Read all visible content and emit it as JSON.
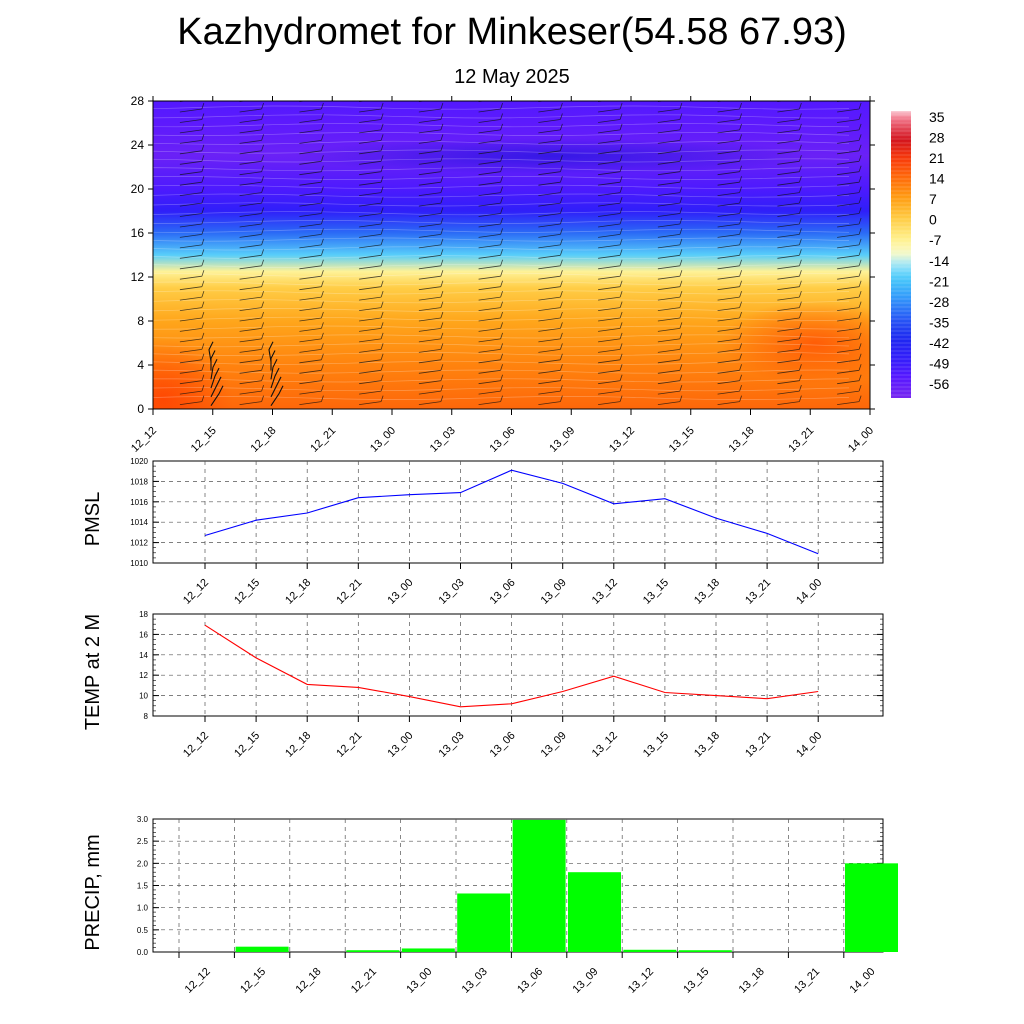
{
  "header": {
    "title": "Kazhydromet for Minkeser(54.58 67.93)",
    "subtitle": "12 May 2025"
  },
  "time_labels": [
    "12_12",
    "12_15",
    "12_18",
    "12_21",
    "13_00",
    "13_03",
    "13_06",
    "13_09",
    "13_12",
    "13_15",
    "13_18",
    "13_21",
    "14_00"
  ],
  "chart_data": [
    {
      "type": "heatmap",
      "title": "",
      "xlabel": "",
      "ylabel": "",
      "x": [
        "12_12",
        "12_15",
        "12_18",
        "12_21",
        "13_00",
        "13_03",
        "13_06",
        "13_09",
        "13_12",
        "13_15",
        "13_18",
        "13_21",
        "14_00"
      ],
      "y_ticks": [
        0,
        4,
        8,
        12,
        16,
        20,
        24,
        28
      ],
      "ylim": [
        0,
        28
      ],
      "colorbar_ticks": [
        35,
        28,
        21,
        14,
        7,
        0,
        -7,
        -14,
        -21,
        -28,
        -35,
        -42,
        -49,
        -56
      ],
      "colorbar_range": [
        -63,
        38
      ],
      "vertical_profile_typical": [
        {
          "level": 0,
          "value": 15
        },
        {
          "level": 4,
          "value": 11
        },
        {
          "level": 8,
          "value": 6
        },
        {
          "level": 11,
          "value": 0
        },
        {
          "level": 12.5,
          "value": -8
        },
        {
          "level": 14,
          "value": -20
        },
        {
          "level": 16,
          "value": -33
        },
        {
          "level": 18,
          "value": -48
        },
        {
          "level": 20,
          "value": -54
        },
        {
          "level": 23,
          "value": -60
        },
        {
          "level": 26,
          "value": -57
        },
        {
          "level": 28,
          "value": -55
        }
      ],
      "wind_barbs": true,
      "colors": {
        "warm": "#ff6a00",
        "mid": "#ffd040",
        "neutral": "#fff8c0",
        "cool": "#40c8f8",
        "cold": "#5a2aff",
        "coldest": "#1818e8"
      }
    },
    {
      "type": "line",
      "ylabel": "PMSL",
      "x": [
        "12_12",
        "12_15",
        "12_18",
        "12_21",
        "13_00",
        "13_03",
        "13_06",
        "13_09",
        "13_12",
        "13_15",
        "13_18",
        "13_21",
        "14_00"
      ],
      "values": [
        1012.7,
        1014.2,
        1014.9,
        1016.4,
        1016.7,
        1016.9,
        1019.1,
        1017.8,
        1015.8,
        1016.3,
        1014.4,
        1012.9,
        1010.9
      ],
      "ylim": [
        1010,
        1020
      ],
      "y_ticks": [
        1010,
        1012,
        1014,
        1016,
        1018,
        1020
      ],
      "grid": true,
      "color": "#0000ff"
    },
    {
      "type": "line",
      "ylabel": "TEMP at 2 M",
      "x": [
        "12_12",
        "12_15",
        "12_18",
        "12_21",
        "13_00",
        "13_03",
        "13_06",
        "13_09",
        "13_12",
        "13_15",
        "13_18",
        "13_21",
        "14_00"
      ],
      "values": [
        16.9,
        13.7,
        11.1,
        10.8,
        9.9,
        8.9,
        9.2,
        10.4,
        11.9,
        10.3,
        10.0,
        9.7,
        10.4
      ],
      "ylim": [
        8,
        18
      ],
      "y_ticks": [
        8,
        10,
        12,
        14,
        16,
        18
      ],
      "grid": true,
      "color": "#ff0000"
    },
    {
      "type": "bar",
      "ylabel": "PRECIP, mm",
      "categories": [
        "12_12",
        "12_15",
        "12_18",
        "12_21",
        "13_00",
        "13_03",
        "13_06",
        "13_09",
        "13_12",
        "13_15",
        "13_18",
        "13_21",
        "14_00"
      ],
      "values": [
        0.0,
        0.12,
        0.0,
        0.04,
        0.08,
        1.32,
        2.98,
        1.8,
        0.05,
        0.04,
        0.0,
        0.0,
        2.0
      ],
      "ylim": [
        0,
        3.0
      ],
      "y_ticks": [
        "0.0",
        "0.5",
        "1.0",
        "1.5",
        "2.0",
        "2.5",
        "3.0"
      ],
      "grid": true,
      "color": "#00ff00"
    }
  ]
}
